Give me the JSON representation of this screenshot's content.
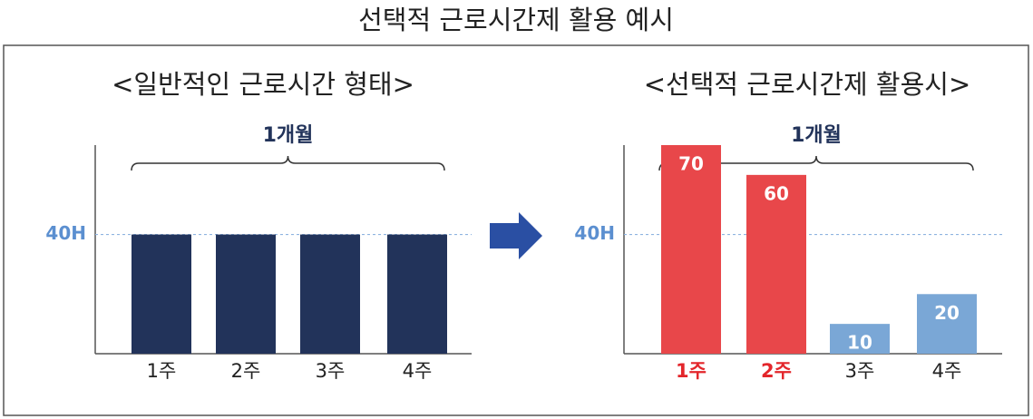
{
  "title": "선택적 근로시간제 활용 예시",
  "chart_data": [
    {
      "type": "bar",
      "title": "<일반적인 근로시간 형태>",
      "annotation": "1개월",
      "categories": [
        "1주",
        "2주",
        "3주",
        "4주"
      ],
      "values": [
        40,
        40,
        40,
        40
      ],
      "colors": [
        "#22335a",
        "#22335a",
        "#22335a",
        "#22335a"
      ],
      "category_colors": [
        "#222222",
        "#222222",
        "#222222",
        "#222222"
      ],
      "ylim": [
        0,
        70
      ],
      "yticks": [
        {
          "value": 40,
          "label": "40H"
        }
      ],
      "grid": true,
      "show_values": false
    },
    {
      "type": "bar",
      "title": "<선택적 근로시간제 활용시>",
      "annotation": "1개월",
      "categories": [
        "1주",
        "2주",
        "3주",
        "4주"
      ],
      "values": [
        70,
        60,
        10,
        20
      ],
      "colors": [
        "#e8474a",
        "#e8474a",
        "#7aa7d6",
        "#7aa7d6"
      ],
      "category_colors": [
        "#e3262b",
        "#e3262b",
        "#222222",
        "#222222"
      ],
      "ylim": [
        0,
        70
      ],
      "yticks": [
        {
          "value": 40,
          "label": "40H"
        }
      ],
      "grid": true,
      "show_values": true
    }
  ]
}
